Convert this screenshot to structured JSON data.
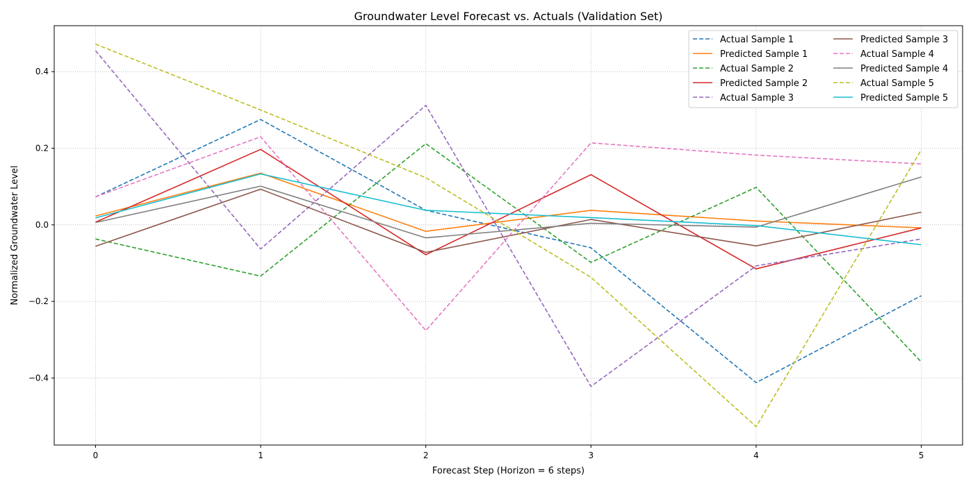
{
  "chart_data": {
    "type": "line",
    "title": "Groundwater Level Forecast vs. Actuals (Validation Set)",
    "xlabel": "Forecast Step (Horizon = 6 steps)",
    "ylabel": "Normalized Groundwater Level",
    "x": [
      0,
      1,
      2,
      3,
      4,
      5
    ],
    "xlim": [
      -0.25,
      5.25
    ],
    "ylim": [
      -0.575,
      0.52
    ],
    "xticks": [
      0,
      1,
      2,
      3,
      4,
      5
    ],
    "xtick_labels": [
      "0",
      "1",
      "2",
      "3",
      "4",
      "5"
    ],
    "yticks": [
      -0.4,
      -0.2,
      0.0,
      0.2,
      0.4
    ],
    "ytick_labels": [
      "−0.4",
      "−0.2",
      "0.0",
      "0.2",
      "0.4"
    ],
    "grid": true,
    "legend_position": "top-right",
    "legend_columns": 2,
    "series": [
      {
        "name": "Actual Sample 1",
        "style": "dashed",
        "color": "#1f77b4",
        "values": [
          0.073,
          0.275,
          0.038,
          -0.06,
          -0.412,
          -0.185
        ]
      },
      {
        "name": "Predicted Sample 1",
        "style": "solid",
        "color": "#ff7f0e",
        "values": [
          0.023,
          0.135,
          -0.017,
          0.038,
          0.01,
          -0.008
        ]
      },
      {
        "name": "Actual Sample 2",
        "style": "dashed",
        "color": "#2ca02c",
        "values": [
          -0.037,
          -0.134,
          0.212,
          -0.098,
          0.098,
          -0.358
        ]
      },
      {
        "name": "Predicted Sample 2",
        "style": "solid",
        "color": "#d62728",
        "values": [
          0.007,
          0.197,
          -0.078,
          0.131,
          -0.115,
          -0.008
        ]
      },
      {
        "name": "Actual Sample 3",
        "style": "dashed",
        "color": "#9467bd",
        "values": [
          0.455,
          -0.063,
          0.312,
          -0.422,
          -0.107,
          -0.037
        ]
      },
      {
        "name": "Predicted Sample 3",
        "style": "solid",
        "color": "#8c564b",
        "values": [
          -0.056,
          0.093,
          -0.072,
          0.014,
          -0.055,
          0.033
        ]
      },
      {
        "name": "Actual Sample 4",
        "style": "dashed",
        "color": "#e377c2",
        "values": [
          0.073,
          0.23,
          -0.276,
          0.214,
          0.182,
          0.159
        ]
      },
      {
        "name": "Predicted Sample 4",
        "style": "solid",
        "color": "#7f7f7f",
        "values": [
          0.006,
          0.101,
          -0.034,
          0.004,
          -0.006,
          0.125
        ]
      },
      {
        "name": "Actual Sample 5",
        "style": "dashed",
        "color": "#bcbd22",
        "values": [
          0.472,
          0.3,
          0.123,
          -0.137,
          -0.527,
          0.196
        ]
      },
      {
        "name": "Predicted Sample 5",
        "style": "solid",
        "color": "#17becf",
        "values": [
          0.018,
          0.133,
          0.038,
          0.019,
          -0.002,
          -0.052
        ]
      }
    ]
  }
}
